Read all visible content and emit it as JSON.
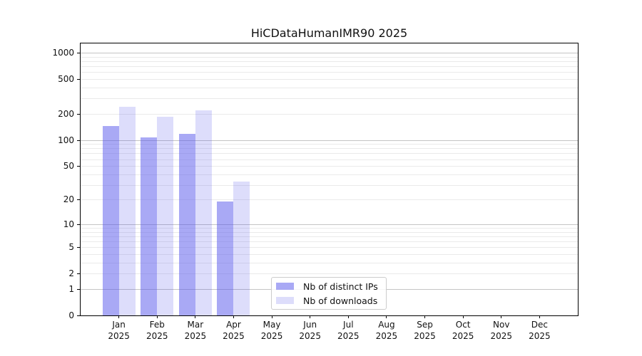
{
  "chart_data": {
    "type": "bar",
    "title": "HiCDataHumanIMR90 2025",
    "yscale": "log10(1+v)",
    "ylim": [
      0,
      1280
    ],
    "yticks": [
      0,
      1,
      2,
      5,
      10,
      20,
      50,
      100,
      200,
      500,
      1000
    ],
    "grid": {
      "orientation": "horizontal",
      "major_values": [
        1,
        10,
        100,
        1000
      ],
      "minor_values": [
        2,
        3,
        4,
        5,
        6,
        7,
        8,
        9,
        20,
        30,
        40,
        50,
        60,
        70,
        80,
        90,
        200,
        300,
        400,
        500,
        600,
        700,
        800,
        900
      ]
    },
    "categories": [
      "Jan",
      "Feb",
      "Mar",
      "Apr",
      "May",
      "Jun",
      "Jul",
      "Aug",
      "Sep",
      "Oct",
      "Nov",
      "Dec"
    ],
    "year": "2025",
    "series": [
      {
        "key": "distinct-ips",
        "name": "Nb of distinct IPs",
        "base_color": "#5353eb",
        "alpha": 0.5,
        "color_css": "rgba(83,83,235,0.5)",
        "values": [
          145,
          108,
          118,
          19,
          null,
          null,
          null,
          null,
          null,
          null,
          null,
          null
        ]
      },
      {
        "key": "downloads",
        "name": "Nb of downloads",
        "base_color": "#5353eb",
        "alpha": 0.2,
        "color_css": "rgba(83,83,235,0.2)",
        "values": [
          240,
          185,
          220,
          33,
          null,
          null,
          null,
          null,
          null,
          null,
          null,
          null
        ]
      }
    ],
    "legend_position": "inside plot, lower middle"
  },
  "colors": {
    "background": "#ffffff",
    "axis": "#000000",
    "grid_major": "#c4c4c4",
    "grid_minor": "#eaeaea",
    "text": "#111111"
  }
}
